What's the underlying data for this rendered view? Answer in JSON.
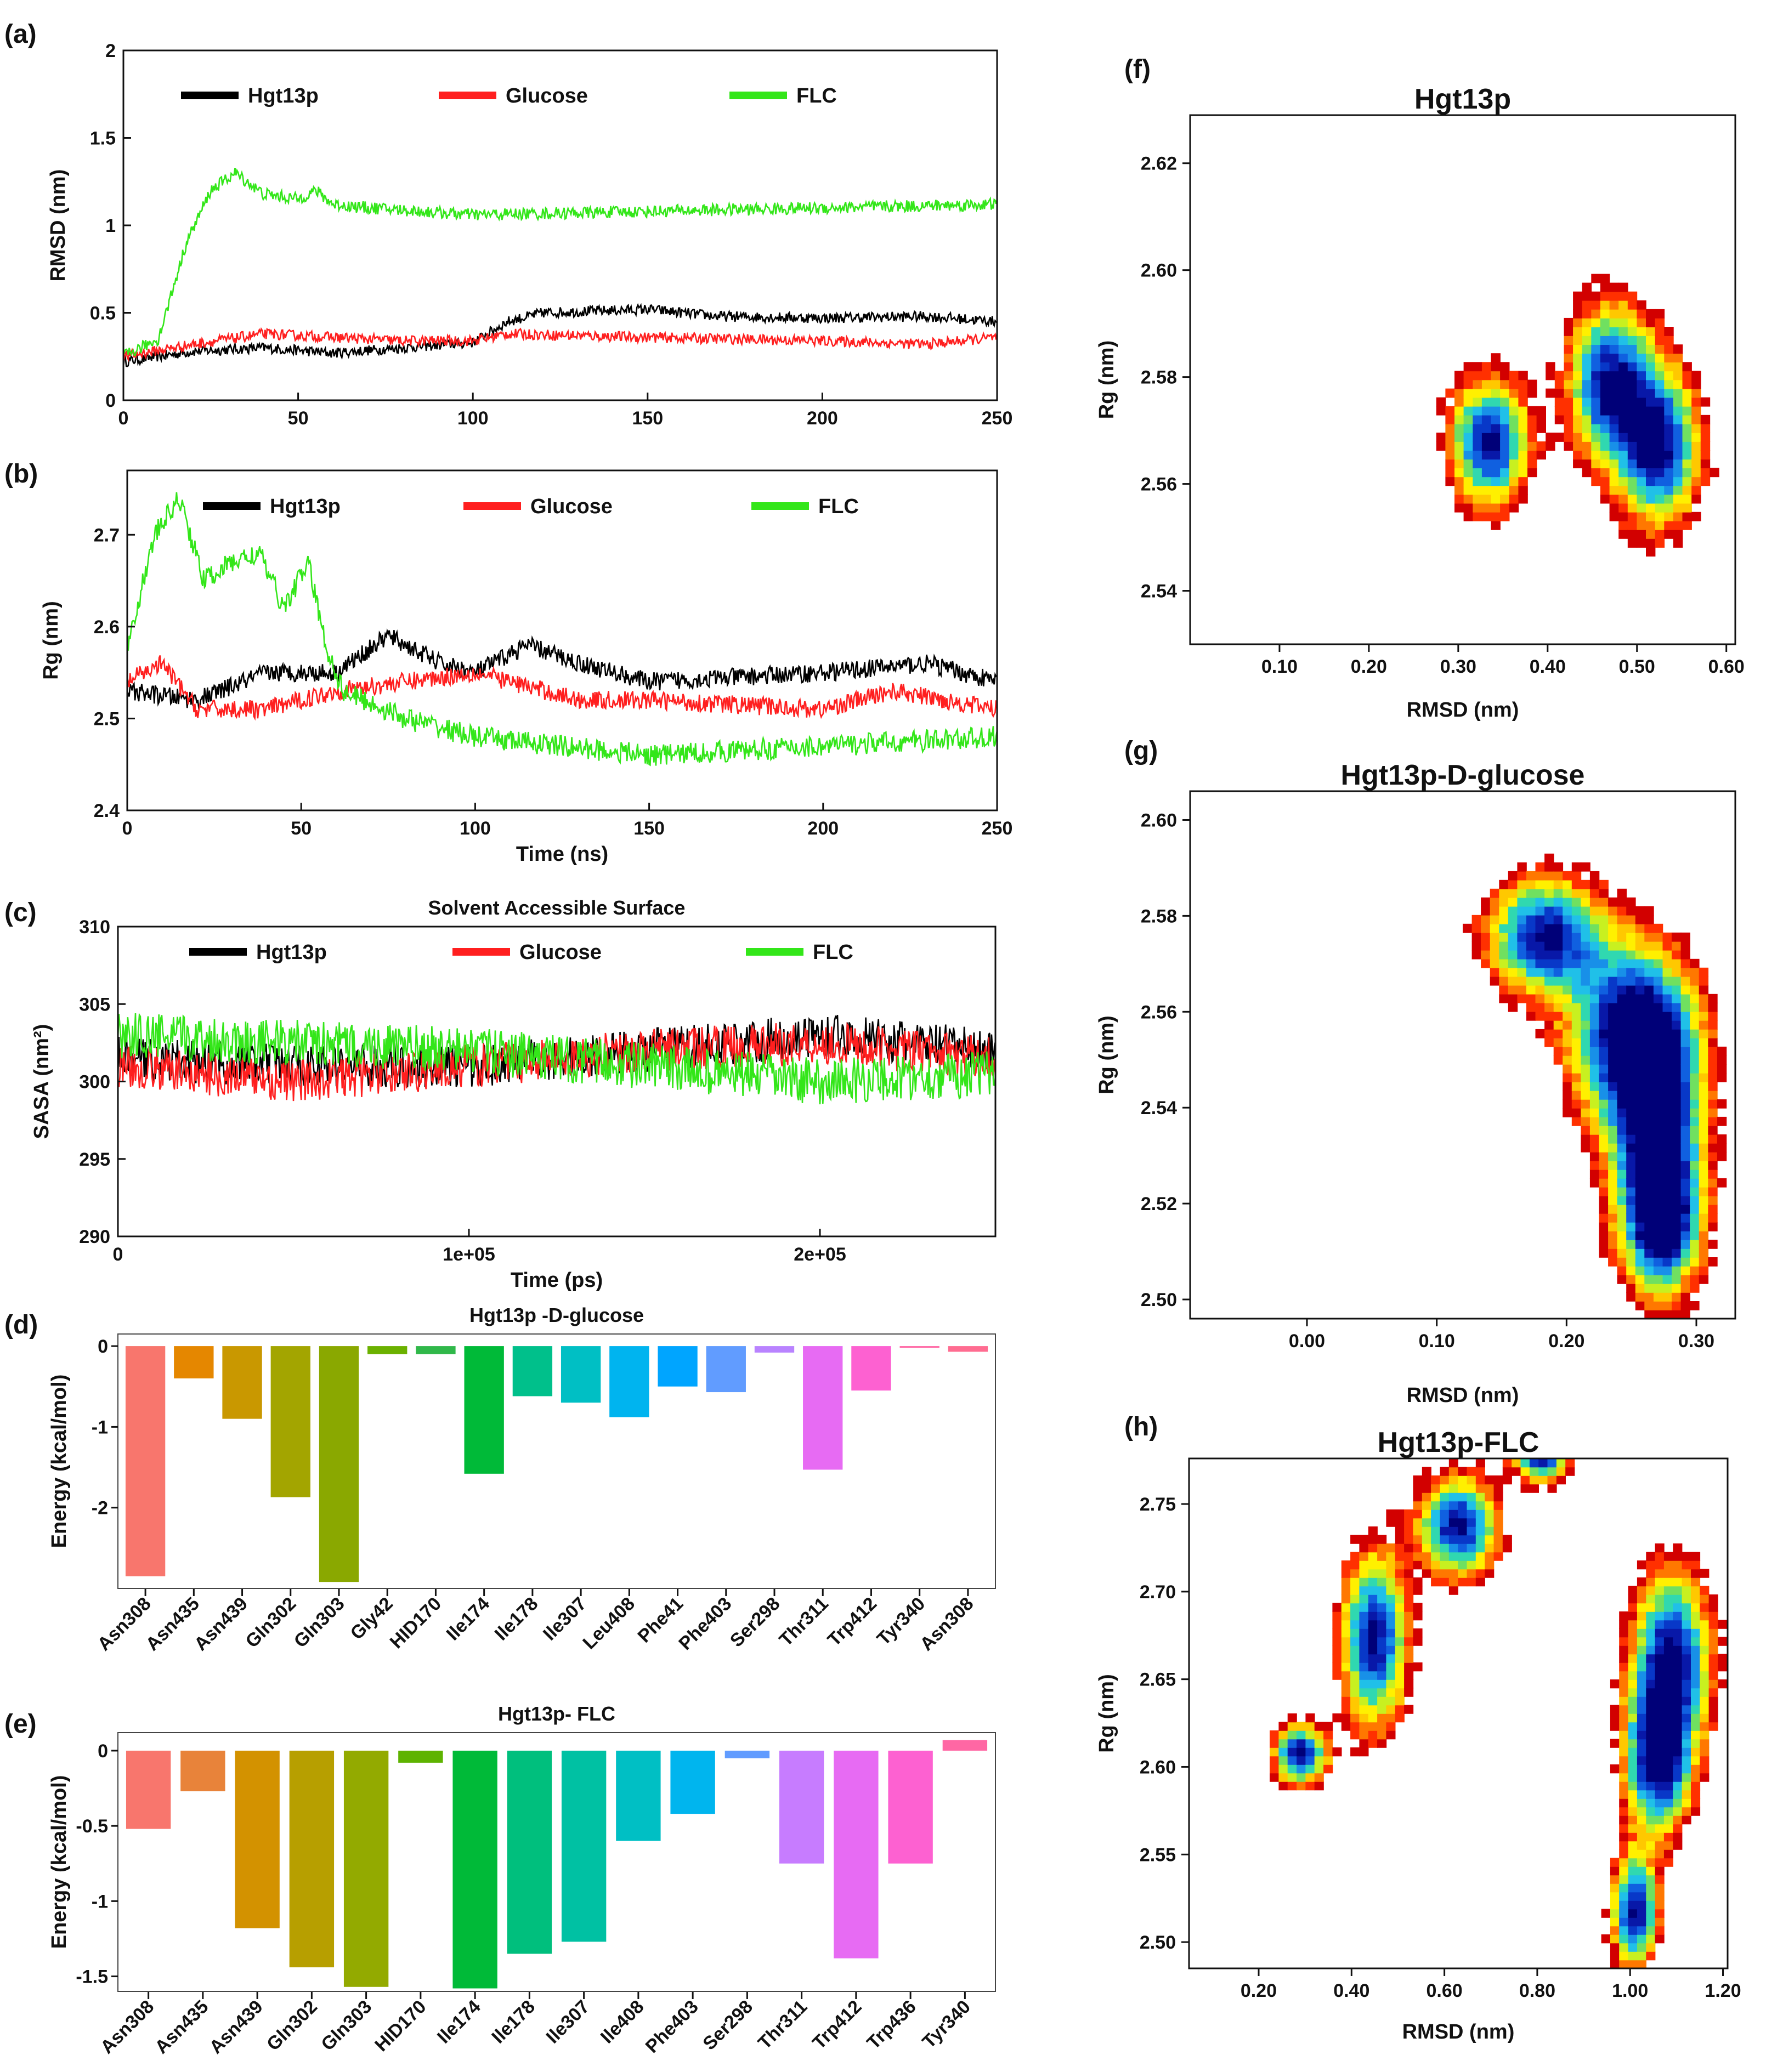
{
  "figure": {
    "colors": {
      "hgt13p": "#000000",
      "glucose": "#ff1f1f",
      "flc": "#33e619"
    }
  },
  "chart_data": [
    {
      "panel": "(a)",
      "type": "line",
      "xlabel": "",
      "ylabel": "RMSD (nm)",
      "xlim": [
        0,
        250
      ],
      "ylim": [
        0,
        2
      ],
      "xticks": [
        "0",
        "50",
        "100",
        "150",
        "200",
        "250"
      ],
      "yticks": [
        "0",
        "0.5",
        "1",
        "1.5",
        "2"
      ],
      "legend": [
        "Hgt13p",
        "Glucose",
        "FLC"
      ],
      "series": [
        {
          "name": "Hgt13p",
          "x": [
            0,
            20,
            40,
            60,
            80,
            100,
            110,
            120,
            150,
            170,
            200,
            230,
            250
          ],
          "y": [
            0.22,
            0.28,
            0.3,
            0.27,
            0.3,
            0.33,
            0.45,
            0.5,
            0.52,
            0.48,
            0.47,
            0.48,
            0.45
          ],
          "noise": 0.03
        },
        {
          "name": "Glucose",
          "x": [
            0,
            20,
            40,
            60,
            80,
            100,
            110,
            150,
            200,
            230,
            250
          ],
          "y": [
            0.25,
            0.32,
            0.38,
            0.36,
            0.34,
            0.34,
            0.38,
            0.36,
            0.34,
            0.32,
            0.36
          ],
          "noise": 0.03
        },
        {
          "name": "FLC",
          "x": [
            0,
            10,
            18,
            25,
            32,
            40,
            50,
            55,
            60,
            70,
            100,
            150,
            200,
            250
          ],
          "y": [
            0.25,
            0.35,
            0.9,
            1.2,
            1.3,
            1.18,
            1.15,
            1.2,
            1.12,
            1.1,
            1.06,
            1.08,
            1.1,
            1.12
          ],
          "noise": 0.035
        }
      ]
    },
    {
      "panel": "(b)",
      "type": "line",
      "xlabel": "Time (ns)",
      "ylabel": "Rg (nm)",
      "xlim": [
        0,
        250
      ],
      "ylim": [
        2.4,
        2.77
      ],
      "xticks": [
        "0",
        "50",
        "100",
        "150",
        "200",
        "250"
      ],
      "yticks": [
        "2.4",
        "2.5",
        "2.6",
        "2.7"
      ],
      "legend": [
        "Hgt13p",
        "Glucose",
        "FLC"
      ],
      "series": [
        {
          "name": "Hgt13p",
          "x": [
            0,
            20,
            40,
            60,
            75,
            90,
            100,
            115,
            130,
            150,
            200,
            230,
            250
          ],
          "y": [
            2.53,
            2.52,
            2.55,
            2.55,
            2.59,
            2.56,
            2.55,
            2.58,
            2.56,
            2.54,
            2.55,
            2.56,
            2.54
          ],
          "noise": 0.01
        },
        {
          "name": "Glucose",
          "x": [
            0,
            10,
            20,
            40,
            60,
            80,
            100,
            130,
            150,
            200,
            220,
            250
          ],
          "y": [
            2.54,
            2.56,
            2.51,
            2.51,
            2.53,
            2.54,
            2.55,
            2.52,
            2.52,
            2.51,
            2.53,
            2.51
          ],
          "noise": 0.01
        },
        {
          "name": "FLC",
          "x": [
            0,
            8,
            15,
            22,
            30,
            38,
            45,
            52,
            57,
            62,
            80,
            100,
            150,
            200,
            250
          ],
          "y": [
            2.58,
            2.7,
            2.74,
            2.65,
            2.67,
            2.68,
            2.62,
            2.67,
            2.58,
            2.53,
            2.5,
            2.48,
            2.46,
            2.47,
            2.48
          ],
          "noise": 0.012
        }
      ]
    },
    {
      "panel": "(c)",
      "type": "line",
      "title": "Solvent Accessible Surface",
      "xlabel": "Time (ps)",
      "ylabel": "SASA (nm²)",
      "xlim": [
        0,
        250000
      ],
      "ylim": [
        290,
        310
      ],
      "xticks": [
        "0",
        "1e+05",
        "2e+05"
      ],
      "yticks": [
        "290",
        "295",
        "300",
        "305",
        "310"
      ],
      "legend": [
        "Hgt13p",
        "Glucose",
        "FLC"
      ],
      "series": [
        {
          "name": "Hgt13p",
          "x": [
            0,
            50000,
            100000,
            150000,
            200000,
            250000
          ],
          "y": [
            301.5,
            301,
            301,
            302,
            303,
            302
          ],
          "noise": 1.4
        },
        {
          "name": "Glucose",
          "x": [
            0,
            50000,
            100000,
            150000,
            200000,
            250000
          ],
          "y": [
            301,
            300,
            301,
            302,
            302.5,
            301.5
          ],
          "noise": 1.4
        },
        {
          "name": "FLC",
          "x": [
            0,
            50000,
            100000,
            150000,
            200000,
            250000
          ],
          "y": [
            303,
            302.5,
            302,
            301,
            300,
            300.5
          ],
          "noise": 1.5
        }
      ]
    },
    {
      "panel": "(d)",
      "type": "bar",
      "title": "Hgt13p -D-glucose",
      "ylabel": "Energy (kcal/mol)",
      "ylim": [
        -3.0,
        0.15
      ],
      "yticks": [
        "0",
        "-1",
        "-2"
      ],
      "categories": [
        "Asn308",
        "Asn435",
        "Asn439",
        "Gln302",
        "Gln303",
        "Gly42",
        "HID170",
        "Ile174",
        "Ile178",
        "Ile307",
        "Leu408",
        "Phe41",
        "Phe403",
        "Ser298",
        "Thr311",
        "Trp412",
        "Tyr340",
        "Asn308"
      ],
      "values": [
        -2.85,
        -0.4,
        -0.9,
        -1.87,
        -2.92,
        -0.1,
        -0.1,
        -1.58,
        -0.62,
        -0.7,
        -0.88,
        -0.5,
        -0.57,
        -0.08,
        -1.53,
        -0.55,
        -0.02,
        -0.07
      ],
      "colors": [
        "#f8766d",
        "#e58700",
        "#c99800",
        "#a3a500",
        "#8aa800",
        "#6bb100",
        "#30b84a",
        "#00ba38",
        "#00c08b",
        "#00bfc4",
        "#00b4ef",
        "#00a5ff",
        "#619cff",
        "#b983ff",
        "#e76bf3",
        "#fd61d1",
        "#ff67a4",
        "#ff6c91"
      ]
    },
    {
      "panel": "(e)",
      "type": "bar",
      "title": "Hgt13p- FLC",
      "ylabel": "Energy (kcal/mol)",
      "ylim": [
        -1.6,
        0.12
      ],
      "yticks": [
        "0",
        "-0.5",
        "-1",
        "-1.5"
      ],
      "categories": [
        "Asn308",
        "Asn435",
        "Asn439",
        "Gln302",
        "Gln303",
        "HID170",
        "Ile174",
        "Ile178",
        "Ile307",
        "Ile408",
        "Phe403",
        "Ser298",
        "Thr311",
        "Trp412",
        "Trp436",
        "Tyr340"
      ],
      "values": [
        -0.52,
        -0.27,
        -1.18,
        -1.44,
        -1.57,
        -0.08,
        -1.58,
        -1.35,
        -1.27,
        -0.6,
        -0.42,
        -0.05,
        -0.75,
        -1.38,
        -0.75,
        0.07
      ],
      "colors": [
        "#f8766d",
        "#e8833a",
        "#d39200",
        "#b79f00",
        "#93aa00",
        "#5eb300",
        "#00ba38",
        "#00bf7d",
        "#00c1a3",
        "#00bfc4",
        "#00b5ee",
        "#619cff",
        "#c77cff",
        "#e76bf3",
        "#fd61d1",
        "#ff67a4"
      ]
    },
    {
      "panel": "(f)",
      "type": "heatmap",
      "title": "Hgt13p",
      "xlabel": "RMSD (nm)",
      "ylabel": "Rg (nm)",
      "xlim": [
        0.0,
        0.61
      ],
      "ylim": [
        2.53,
        2.629
      ],
      "xticks": [
        "0.10",
        "0.20",
        "0.30",
        "0.40",
        "0.50",
        "0.60"
      ],
      "yticks": [
        "2.54",
        "2.56",
        "2.58",
        "2.60",
        "2.62"
      ],
      "basins": [
        [
          0.33,
          2.567,
          0.03,
          0.008
        ],
        [
          0.465,
          2.578,
          0.032,
          0.01
        ],
        [
          0.52,
          2.566,
          0.03,
          0.01
        ]
      ],
      "threshold": 0.16,
      "xstep": 0.0102,
      "ystep": 0.00165
    },
    {
      "panel": "(g)",
      "type": "heatmap",
      "title": "Hgt13p-D-glucose",
      "xlabel": "RMSD (nm)",
      "ylabel": "Rg (nm)",
      "xlim": [
        -0.09,
        0.33
      ],
      "ylim": [
        2.496,
        2.606
      ],
      "xticks": [
        "0.00",
        "0.10",
        "0.20",
        "0.30"
      ],
      "yticks": [
        "2.50",
        "2.52",
        "2.54",
        "2.56",
        "2.58",
        "2.60"
      ],
      "basins": [
        [
          0.245,
          2.555,
          0.032,
          0.012
        ],
        [
          0.265,
          2.537,
          0.025,
          0.016
        ],
        [
          0.27,
          2.515,
          0.02,
          0.01
        ],
        [
          0.18,
          2.575,
          0.03,
          0.008
        ]
      ],
      "threshold": 0.16,
      "xstep": 0.007,
      "ystep": 0.00183
    },
    {
      "panel": "(h)",
      "type": "heatmap",
      "title": "Hgt13p-FLC",
      "xlabel": "RMSD (nm)",
      "ylabel": "Rg (nm)",
      "xlim": [
        0.05,
        1.21
      ],
      "ylim": [
        2.485,
        2.776
      ],
      "xticks": [
        "0.20",
        "0.40",
        "0.60",
        "0.80",
        "1.00",
        "1.20"
      ],
      "yticks": [
        "2.50",
        "2.55",
        "2.60",
        "2.65",
        "2.70",
        "2.75"
      ],
      "basins": [
        [
          1.0,
          2.515,
          0.035,
          0.022
        ],
        [
          1.08,
          2.66,
          0.06,
          0.035
        ],
        [
          0.44,
          2.67,
          0.05,
          0.035
        ],
        [
          0.62,
          2.735,
          0.06,
          0.02
        ],
        [
          1.05,
          2.6,
          0.05,
          0.03
        ],
        [
          0.28,
          2.605,
          0.04,
          0.012
        ],
        [
          0.8,
          2.775,
          0.04,
          0.01
        ]
      ],
      "threshold": 0.2,
      "xstep": 0.0193,
      "ystep": 0.00485
    }
  ]
}
